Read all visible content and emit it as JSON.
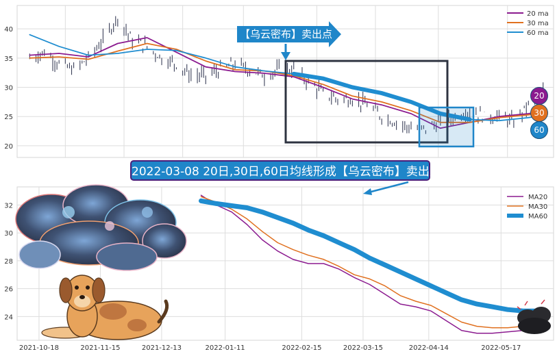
{
  "annotations": {
    "arrow_label": "【乌云密布】卖出点",
    "banner": "2022-03-08 20日,30日,60日均线形成【乌云密布】卖出点"
  },
  "badges": [
    {
      "label": "20",
      "color": "#8b1a8f"
    },
    {
      "label": "30",
      "color": "#e0701f"
    },
    {
      "label": "60",
      "color": "#1f86c9"
    }
  ],
  "colors": {
    "ma20": "#8b1a8f",
    "ma30": "#e0701f",
    "ma60": "#1f8dd0",
    "candle": "#3a3f58",
    "grid": "#dddddd",
    "box": "#2e3340",
    "highlight": "#1f86c9"
  },
  "chart_data": [
    {
      "type": "line",
      "title": "",
      "ylim": [
        18,
        44
      ],
      "yticks": [
        "20",
        "25",
        "30",
        "35",
        "40"
      ],
      "x_range": [
        "2021-09-25",
        "2022-06-08"
      ],
      "legend": {
        "position": "top-right",
        "entries": [
          "20 ma",
          "30 ma",
          "60 ma"
        ]
      },
      "series": [
        {
          "name": "price",
          "x": [
            "2021-10-01",
            "2021-10-08",
            "2021-10-15",
            "2021-10-22",
            "2021-10-29",
            "2021-11-05",
            "2021-11-12",
            "2021-11-19",
            "2021-11-26",
            "2021-12-03",
            "2021-12-10",
            "2021-12-17",
            "2021-12-24",
            "2021-12-31",
            "2022-01-07",
            "2022-01-14",
            "2022-01-21",
            "2022-01-28",
            "2022-02-04",
            "2022-02-11",
            "2022-02-18",
            "2022-02-25",
            "2022-03-04",
            "2022-03-11",
            "2022-03-18",
            "2022-03-25",
            "2022-04-01",
            "2022-04-08",
            "2022-04-15",
            "2022-04-22",
            "2022-04-29",
            "2022-05-06",
            "2022-05-13",
            "2022-05-20",
            "2022-05-27",
            "2022-06-03"
          ],
          "values": [
            35,
            36,
            34,
            33,
            35,
            38,
            42,
            38,
            37,
            35,
            34,
            32,
            32,
            33,
            34,
            33,
            32,
            33,
            33,
            31,
            29,
            28,
            28,
            27,
            25,
            24,
            23,
            23,
            24,
            25,
            26,
            25,
            25,
            24,
            27,
            29
          ]
        },
        {
          "name": "20 ma",
          "x": [
            "2021-10-01",
            "2021-10-15",
            "2021-10-29",
            "2021-11-12",
            "2021-11-26",
            "2021-12-10",
            "2021-12-24",
            "2022-01-07",
            "2022-01-21",
            "2022-02-04",
            "2022-02-18",
            "2022-03-04",
            "2022-03-18",
            "2022-04-01",
            "2022-04-15",
            "2022-04-29",
            "2022-05-13",
            "2022-05-27",
            "2022-06-03"
          ],
          "values": [
            35.5,
            35.8,
            35.2,
            37.5,
            38.5,
            36.0,
            33.5,
            32.7,
            32.4,
            31.8,
            30.0,
            28.0,
            27.0,
            25.5,
            23.0,
            24.0,
            25.0,
            25.5,
            26.0
          ]
        },
        {
          "name": "30 ma",
          "x": [
            "2021-10-01",
            "2021-10-15",
            "2021-10-29",
            "2021-11-12",
            "2021-11-26",
            "2021-12-10",
            "2021-12-24",
            "2022-01-07",
            "2022-01-21",
            "2022-02-04",
            "2022-02-18",
            "2022-03-04",
            "2022-03-18",
            "2022-04-01",
            "2022-04-15",
            "2022-04-29",
            "2022-05-13",
            "2022-05-27",
            "2022-06-03"
          ],
          "values": [
            35.0,
            35.2,
            34.8,
            36.2,
            37.5,
            36.5,
            34.5,
            33.0,
            32.8,
            32.0,
            30.5,
            28.5,
            27.5,
            26.0,
            24.0,
            24.0,
            24.8,
            25.3,
            25.6
          ]
        },
        {
          "name": "60 ma",
          "x": [
            "2021-10-01",
            "2021-10-15",
            "2021-10-29",
            "2021-11-12",
            "2021-11-26",
            "2021-12-10",
            "2021-12-24",
            "2022-01-07",
            "2022-01-21",
            "2022-02-04",
            "2022-02-18",
            "2022-03-04",
            "2022-03-18",
            "2022-04-01",
            "2022-04-15",
            "2022-04-29",
            "2022-05-13",
            "2022-05-27",
            "2022-06-03"
          ],
          "values": [
            39.0,
            37.0,
            35.5,
            35.8,
            36.5,
            36.3,
            35.0,
            33.5,
            32.8,
            32.3,
            31.5,
            30.0,
            29.0,
            27.5,
            25.5,
            24.5,
            24.3,
            24.8,
            25.2
          ]
        }
      ]
    },
    {
      "type": "line",
      "title": "",
      "ylim": [
        22.3,
        33.3
      ],
      "yticks": [
        "24",
        "26",
        "28",
        "30",
        "32"
      ],
      "xticks": [
        "2021-10-18",
        "2021-11-15",
        "2021-12-13",
        "2022-01-11",
        "2022-02-15",
        "2022-03-15",
        "2022-04-14",
        "2022-05-17"
      ],
      "x_range": [
        "2021-10-08",
        "2022-06-10"
      ],
      "legend": {
        "position": "top-right",
        "entries": [
          "MA20",
          "MA30",
          "MA60"
        ]
      },
      "series": [
        {
          "name": "MA20",
          "x": [
            "2021-12-31",
            "2022-01-07",
            "2022-01-14",
            "2022-01-21",
            "2022-01-28",
            "2022-02-04",
            "2022-02-11",
            "2022-02-18",
            "2022-02-25",
            "2022-03-04",
            "2022-03-11",
            "2022-03-18",
            "2022-03-25",
            "2022-04-01",
            "2022-04-08",
            "2022-04-15",
            "2022-04-22",
            "2022-04-29",
            "2022-05-06",
            "2022-05-13",
            "2022-05-20",
            "2022-05-27",
            "2022-06-03"
          ],
          "values": [
            32.7,
            32.0,
            31.5,
            30.6,
            29.5,
            28.7,
            28.1,
            27.8,
            27.8,
            27.4,
            26.8,
            26.3,
            25.6,
            24.9,
            24.7,
            24.4,
            23.7,
            23.0,
            22.8,
            22.8,
            22.9,
            23.0,
            23.1
          ]
        },
        {
          "name": "MA30",
          "x": [
            "2021-12-31",
            "2022-01-07",
            "2022-01-14",
            "2022-01-21",
            "2022-01-28",
            "2022-02-04",
            "2022-02-11",
            "2022-02-18",
            "2022-02-25",
            "2022-03-04",
            "2022-03-11",
            "2022-03-18",
            "2022-03-25",
            "2022-04-01",
            "2022-04-08",
            "2022-04-15",
            "2022-04-22",
            "2022-04-29",
            "2022-05-06",
            "2022-05-13",
            "2022-05-20",
            "2022-05-27",
            "2022-06-03"
          ],
          "values": [
            32.6,
            32.2,
            31.7,
            31.0,
            30.1,
            29.3,
            28.8,
            28.4,
            28.1,
            27.6,
            27.0,
            26.7,
            26.2,
            25.5,
            25.1,
            24.8,
            24.2,
            23.6,
            23.3,
            23.2,
            23.2,
            23.3,
            23.4
          ]
        },
        {
          "name": "MA60",
          "x": [
            "2021-12-31",
            "2022-01-07",
            "2022-01-14",
            "2022-01-21",
            "2022-01-28",
            "2022-02-04",
            "2022-02-11",
            "2022-02-18",
            "2022-02-25",
            "2022-03-04",
            "2022-03-11",
            "2022-03-18",
            "2022-03-25",
            "2022-04-01",
            "2022-04-08",
            "2022-04-15",
            "2022-04-22",
            "2022-04-29",
            "2022-05-06",
            "2022-05-13",
            "2022-05-20",
            "2022-05-27",
            "2022-06-03"
          ],
          "values": [
            32.3,
            32.1,
            31.95,
            31.8,
            31.5,
            31.1,
            30.7,
            30.2,
            29.8,
            29.3,
            28.8,
            28.2,
            27.7,
            27.2,
            26.7,
            26.2,
            25.7,
            25.2,
            24.9,
            24.7,
            24.5,
            24.4,
            24.4
          ]
        }
      ]
    }
  ]
}
